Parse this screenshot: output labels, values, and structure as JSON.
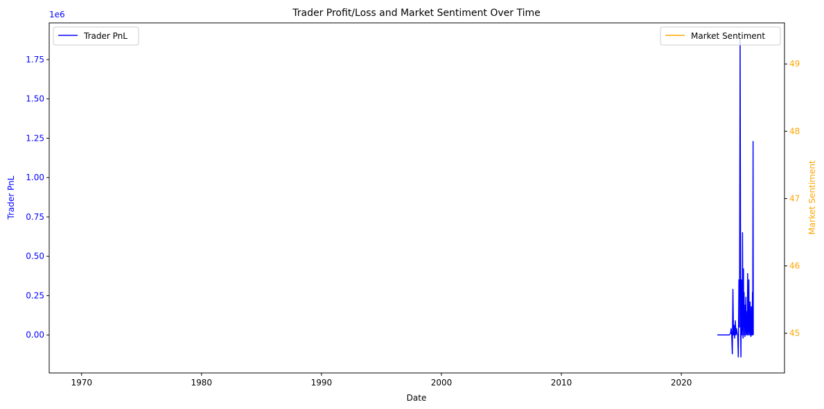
{
  "chart_data": {
    "type": "line",
    "title": "Trader Profit/Loss and Market Sentiment Over Time",
    "xlabel": "Date",
    "ylabel_left": "Trader PnL",
    "ylabel_right": "Market Sentiment",
    "left_offset_label": "1e6",
    "x_ticks": [
      "1970",
      "1980",
      "1990",
      "2000",
      "2010",
      "2020"
    ],
    "x_tick_values": [
      1970,
      1980,
      1990,
      2000,
      2010,
      2020
    ],
    "xlim": [
      1967.3,
      2028.6
    ],
    "left_ticks": [
      "0.00",
      "0.25",
      "0.50",
      "0.75",
      "1.00",
      "1.25",
      "1.50",
      "1.75"
    ],
    "left_tick_values": [
      0,
      0.25,
      0.5,
      0.75,
      1.0,
      1.25,
      1.5,
      1.75
    ],
    "ylim_left": [
      -0.2415,
      1.9833
    ],
    "right_ticks": [
      "45",
      "46",
      "47",
      "48",
      "49"
    ],
    "right_tick_values": [
      45,
      46,
      47,
      48,
      49
    ],
    "ylim_right": [
      44.41,
      49.61
    ],
    "grid": false,
    "legend_left": {
      "placement": "upper-left",
      "label": "Trader PnL"
    },
    "legend_right": {
      "placement": "upper-right",
      "label": "Market Sentiment"
    },
    "series": [
      {
        "name": "Trader PnL",
        "axis": "left",
        "color": "#0000ff",
        "x": [
          2023.0,
          2023.3,
          2023.6,
          2023.9,
          2024.0,
          2024.1,
          2024.15,
          2024.2,
          2024.25,
          2024.3,
          2024.35,
          2024.4,
          2024.45,
          2024.5,
          2024.55,
          2024.6,
          2024.65,
          2024.7,
          2024.75,
          2024.8,
          2024.85,
          2024.9,
          2024.95,
          2024.97,
          2025.0,
          2025.03,
          2025.05,
          2025.08,
          2025.1,
          2025.13,
          2025.15,
          2025.18,
          2025.2,
          2025.23,
          2025.25,
          2025.28,
          2025.3,
          2025.33,
          2025.35,
          2025.38,
          2025.4,
          2025.43,
          2025.45,
          2025.48,
          2025.5,
          2025.53,
          2025.55,
          2025.58,
          2025.6,
          2025.63,
          2025.65,
          2025.68,
          2025.7,
          2025.73,
          2025.75,
          2025.78,
          2025.8,
          2025.83,
          2025.85,
          2025.88,
          2025.9,
          2025.93,
          2025.95,
          2025.98,
          2026.0
        ],
        "y": [
          0.0,
          0.0,
          0.0,
          0.0,
          0.0,
          0.01,
          0.04,
          0.0,
          -0.12,
          0.29,
          0.0,
          0.06,
          -0.02,
          0.09,
          0.0,
          0.04,
          0.01,
          0.0,
          -0.14,
          0.35,
          0.05,
          1.88,
          0.0,
          -0.14,
          0.35,
          0.0,
          0.2,
          0.03,
          0.65,
          0.0,
          -0.02,
          0.42,
          0.05,
          0.27,
          0.0,
          0.11,
          -0.01,
          0.19,
          0.03,
          0.24,
          0.0,
          0.08,
          0.01,
          0.15,
          0.0,
          0.39,
          0.02,
          0.14,
          0.0,
          0.35,
          0.0,
          0.1,
          0.02,
          0.21,
          0.0,
          0.06,
          -0.01,
          0.18,
          0.0,
          0.12,
          0.0,
          0.27,
          0.0,
          1.23,
          0.0
        ]
      },
      {
        "name": "Market Sentiment",
        "axis": "right",
        "color": "#ffa500",
        "x": [],
        "y": []
      }
    ]
  }
}
